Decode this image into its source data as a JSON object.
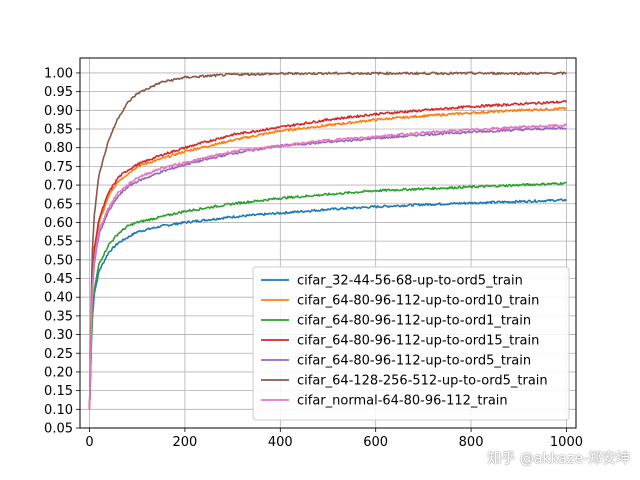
{
  "chart_data": {
    "type": "line",
    "title": "",
    "xlabel": "",
    "ylabel": "",
    "xlim": [
      -20,
      1020
    ],
    "ylim": [
      0.05,
      1.04
    ],
    "xticks": [
      0,
      200,
      400,
      600,
      800,
      1000
    ],
    "yticks": [
      0.05,
      0.1,
      0.15,
      0.2,
      0.25,
      0.3,
      0.35,
      0.4,
      0.45,
      0.5,
      0.55,
      0.6,
      0.65,
      0.7,
      0.75,
      0.8,
      0.85,
      0.9,
      0.95,
      1.0
    ],
    "grid": true,
    "legend_position": "lower-right",
    "x": [
      0,
      5,
      10,
      20,
      40,
      60,
      80,
      100,
      150,
      200,
      300,
      400,
      500,
      600,
      700,
      800,
      900,
      1000
    ],
    "series": [
      {
        "name": "cifar_32-44-56-68-up-to-ord5_train",
        "color": "#1f77b4",
        "values": [
          0.1,
          0.33,
          0.41,
          0.47,
          0.52,
          0.545,
          0.56,
          0.575,
          0.59,
          0.6,
          0.615,
          0.625,
          0.635,
          0.642,
          0.648,
          0.652,
          0.656,
          0.66
        ]
      },
      {
        "name": "cifar_64-80-96-112-up-to-ord10_train",
        "color": "#ff7f0e",
        "values": [
          0.1,
          0.42,
          0.52,
          0.6,
          0.67,
          0.71,
          0.73,
          0.75,
          0.77,
          0.79,
          0.82,
          0.845,
          0.86,
          0.875,
          0.885,
          0.893,
          0.9,
          0.905
        ]
      },
      {
        "name": "cifar_64-80-96-112-up-to-ord1_train",
        "color": "#2ca02c",
        "values": [
          0.1,
          0.33,
          0.42,
          0.49,
          0.54,
          0.57,
          0.59,
          0.6,
          0.615,
          0.63,
          0.65,
          0.665,
          0.675,
          0.685,
          0.69,
          0.695,
          0.7,
          0.705
        ]
      },
      {
        "name": "cifar_64-80-96-112-up-to-ord15_train",
        "color": "#d62728",
        "values": [
          0.1,
          0.43,
          0.53,
          0.61,
          0.68,
          0.72,
          0.74,
          0.755,
          0.78,
          0.8,
          0.835,
          0.855,
          0.875,
          0.89,
          0.9,
          0.91,
          0.917,
          0.923
        ]
      },
      {
        "name": "cifar_64-80-96-112-up-to-ord5_train",
        "color": "#9467bd",
        "values": [
          0.1,
          0.4,
          0.49,
          0.57,
          0.63,
          0.67,
          0.695,
          0.71,
          0.735,
          0.755,
          0.785,
          0.805,
          0.815,
          0.825,
          0.835,
          0.842,
          0.848,
          0.853
        ]
      },
      {
        "name": "cifar_64-128-256-512-up-to-ord5_train",
        "color": "#8c564b",
        "values": [
          0.1,
          0.5,
          0.62,
          0.73,
          0.82,
          0.88,
          0.92,
          0.945,
          0.975,
          0.988,
          0.996,
          0.998,
          0.999,
          0.999,
          0.999,
          0.999,
          0.999,
          0.999
        ]
      },
      {
        "name": "cifar_normal-64-80-96-112_train",
        "color": "#e377c2",
        "values": [
          0.1,
          0.41,
          0.5,
          0.58,
          0.64,
          0.68,
          0.7,
          0.72,
          0.745,
          0.76,
          0.79,
          0.805,
          0.82,
          0.83,
          0.84,
          0.848,
          0.855,
          0.86
        ]
      }
    ]
  },
  "watermark": "知乎 @akkaze-郑安坤"
}
